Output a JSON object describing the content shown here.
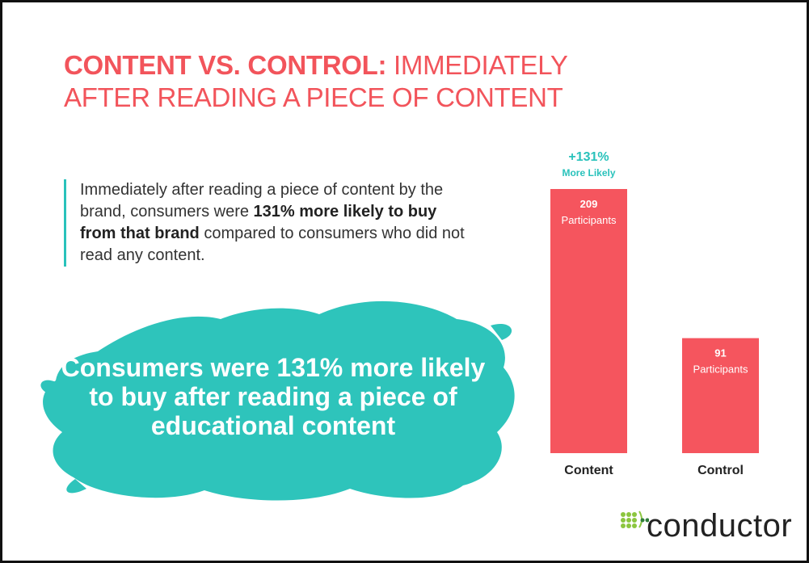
{
  "title": {
    "bold": "CONTENT VS. CONTROL:",
    "light": " IMMEDIATELY AFTER READING A PIECE OF CONTENT"
  },
  "description": {
    "part1": "Immediately after reading a piece of content by the brand, consumers were ",
    "bold": "131% more likely to buy from that brand",
    "part2": " compared to consumers who did not read any content."
  },
  "callout": "Consumers were 131% more likely to buy after reading a piece of educational content",
  "chart_data": {
    "type": "bar",
    "categories": [
      "Content",
      "Control"
    ],
    "values": [
      209,
      91
    ],
    "value_labels": [
      "209",
      "91"
    ],
    "unit_label": "Participants",
    "ylim": [
      0,
      209
    ],
    "annotation": {
      "category": "Content",
      "value": "+131%",
      "text": "More Likely"
    },
    "colors": {
      "bar": "#f5555e",
      "annotation": "#29c2bb",
      "category_text": "#222222"
    }
  },
  "logo": {
    "text": "conductor",
    "icon": "conductor-dots-logo"
  },
  "colors": {
    "title": "#f2545b",
    "accent": "#29c2bb",
    "splash": "#2ec4bb"
  }
}
